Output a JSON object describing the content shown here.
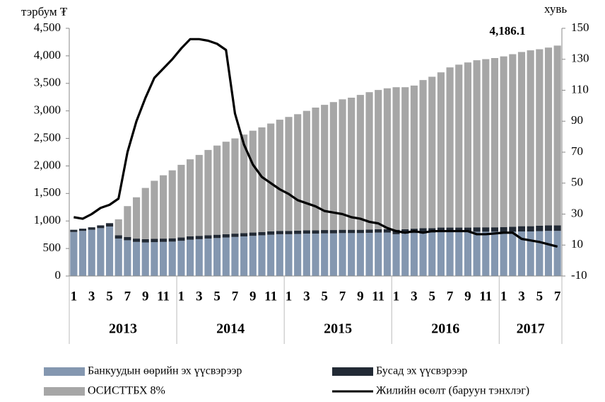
{
  "chart_data": {
    "type": "bar+line",
    "y_label": "тэрбум ₮",
    "y2_label": "хувь",
    "annotation": "4,186.1",
    "categories": [
      "1",
      null,
      "3",
      null,
      "5",
      null,
      "7",
      null,
      "9",
      null,
      "11",
      null,
      "1",
      null,
      "3",
      null,
      "5",
      null,
      "7",
      null,
      "9",
      null,
      "11",
      null,
      "1",
      null,
      "3",
      null,
      "5",
      null,
      "7",
      null,
      "9",
      null,
      "11",
      null,
      "1",
      null,
      "3",
      null,
      "5",
      null,
      "7",
      null,
      "9",
      null,
      "11",
      null,
      "1",
      null,
      "3",
      null,
      "5",
      null,
      "7"
    ],
    "years": [
      "2013",
      "2014",
      "2015",
      "2016",
      "2017"
    ],
    "series": [
      {
        "name": "Банкуудын өөрийн эх үүсвэрээр",
        "color": "#8497b0",
        "type": "bar",
        "values": [
          800,
          820,
          840,
          870,
          900,
          680,
          650,
          620,
          610,
          615,
          620,
          625,
          640,
          660,
          670,
          680,
          690,
          700,
          710,
          720,
          730,
          740,
          750,
          760,
          760,
          765,
          770,
          770,
          775,
          775,
          780,
          780,
          780,
          785,
          790,
          790,
          760,
          770,
          780,
          790,
          790,
          800,
          800,
          800,
          800,
          805,
          805,
          805,
          800,
          805,
          810,
          810,
          815,
          820,
          820
        ]
      },
      {
        "name": "Бусад эх үүсвэрээр",
        "color": "#222a35",
        "type": "bar",
        "values": [
          40,
          40,
          45,
          50,
          60,
          60,
          60,
          60,
          60,
          60,
          60,
          60,
          60,
          60,
          60,
          60,
          60,
          60,
          60,
          60,
          60,
          60,
          60,
          60,
          60,
          60,
          60,
          60,
          60,
          60,
          60,
          60,
          60,
          60,
          60,
          60,
          80,
          80,
          80,
          80,
          80,
          80,
          80,
          80,
          80,
          80,
          80,
          80,
          90,
          90,
          95,
          95,
          100,
          100,
          100
        ]
      },
      {
        "name": "ОСИСТТБХ 8%",
        "color": "#a6a6a6",
        "type": "bar",
        "values": [
          0,
          0,
          0,
          0,
          0,
          290,
          560,
          750,
          930,
          1055,
          1150,
          1235,
          1320,
          1400,
          1470,
          1550,
          1620,
          1680,
          1730,
          1790,
          1850,
          1900,
          1960,
          2020,
          2070,
          2115,
          2170,
          2230,
          2275,
          2325,
          2370,
          2400,
          2450,
          2495,
          2530,
          2560,
          2590,
          2580,
          2600,
          2690,
          2750,
          2820,
          2910,
          2960,
          3000,
          3035,
          3055,
          3075,
          3100,
          3135,
          3165,
          3195,
          3205,
          3230,
          3266.1
        ]
      },
      {
        "name": "Жилийн өсөлт (баруун тэнхлэг)",
        "color": "#000000",
        "type": "line",
        "axis": "y2",
        "values": [
          28,
          27,
          30,
          34,
          36,
          40,
          70,
          90,
          105,
          118,
          124,
          130,
          137,
          143,
          143,
          142,
          140,
          136,
          95,
          75,
          62,
          54,
          50,
          46,
          43,
          39,
          37,
          35,
          32,
          31,
          30,
          28,
          27,
          25,
          24,
          21,
          19,
          18,
          19,
          18,
          19,
          19,
          19,
          19,
          19,
          17,
          17,
          17.5,
          18,
          18,
          14,
          13,
          12,
          10.5,
          9
        ]
      }
    ],
    "ylim": [
      0,
      4500
    ],
    "yticks": [
      0,
      500,
      {
        "value": 1000,
        "label": "1,000"
      },
      {
        "value": 1500,
        "label": "1,500"
      },
      {
        "value": 2000,
        "label": "2,000"
      },
      {
        "value": 2500,
        "label": "2,500"
      },
      {
        "value": 3000,
        "label": "3,000"
      },
      {
        "value": 3500,
        "label": "3,500"
      },
      {
        "value": 4000,
        "label": "4,000"
      },
      {
        "value": 4500,
        "label": "4,500"
      }
    ],
    "y2lim": [
      -10,
      150
    ],
    "y2ticks": [
      -10,
      10,
      30,
      50,
      70,
      90,
      110,
      130,
      150
    ],
    "legend": "bottom"
  }
}
